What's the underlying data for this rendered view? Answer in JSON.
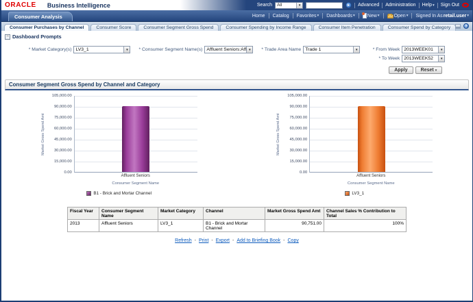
{
  "brand": {
    "oracle": "ORACLE",
    "product": "Business Intelligence"
  },
  "glyphs": {
    "caret_down": "▼",
    "caret_menu": "▾",
    "go_arrow": "▸",
    "help": "?",
    "collapse": "−",
    "link_sep": "-"
  },
  "topbar": {
    "search_label": "Search",
    "search_scope": "All",
    "search_value": "",
    "advanced": "Advanced",
    "administration": "Administration",
    "help": "Help",
    "sign_out": "Sign Out"
  },
  "navbar": {
    "home": "Home",
    "catalog": "Catalog",
    "favorites": "Favorites",
    "dashboards": "Dashboards",
    "new_label": "New",
    "open_label": "Open",
    "signed_in_as": "Signed In As",
    "user": "retail.user"
  },
  "dashboard_tab": "Consumer Analysis",
  "page_tabs": [
    {
      "label": "Consumer Purchases by Channel",
      "active": true
    },
    {
      "label": "Consumer Score",
      "active": false
    },
    {
      "label": "Consumer Segment Gross Spend",
      "active": false
    },
    {
      "label": "Consumer Spending by Income Range",
      "active": false
    },
    {
      "label": "Consumer Item Penetration",
      "active": false
    },
    {
      "label": "Consumer Spend by Category",
      "active": false
    }
  ],
  "prompts": {
    "section_title": "Dashboard Prompts",
    "fields": [
      {
        "label": "* Market Category(s)",
        "value": "LV3_1"
      },
      {
        "label": "* Consumer Segment Name(s)",
        "value": "Affluent Seniors:Aff"
      },
      {
        "label": "* Trade Area Name",
        "value": "Trade 1"
      },
      {
        "label": "* From Week",
        "value": "2013WEEK01"
      },
      {
        "label": "* To Week",
        "value": "2013WEEK52"
      }
    ],
    "apply": "Apply",
    "reset": "Reset"
  },
  "section": {
    "title": "Consumer Segment Gross Spend by Channel and Category"
  },
  "chart_data": [
    {
      "type": "bar",
      "title": "",
      "categories": [
        "Affluent Seniors"
      ],
      "series": [
        {
          "name": "B1 - Brick and Mortar Channel",
          "values": [
            90751
          ]
        }
      ],
      "xlabel": "Consumer Segment Name",
      "ylabel": "Market Gross Spend Amt",
      "ylim": [
        0,
        105000
      ],
      "ytick_step": 15000,
      "yticks": [
        "105,000.00",
        "90,000.00",
        "75,000.00",
        "60,000.00",
        "45,000.00",
        "30,000.00",
        "15,000.00",
        "0.00"
      ],
      "grid": true,
      "legend": "B1 - Brick and Mortar Channel",
      "legend_position": "bottom",
      "bar_gradient": [
        "#61205f",
        "#9a3c9a",
        "#c177c1"
      ]
    },
    {
      "type": "bar",
      "title": "",
      "categories": [
        "Affluent Seniors"
      ],
      "series": [
        {
          "name": "LV3_1",
          "values": [
            90751
          ]
        }
      ],
      "xlabel": "Consumer Segment Name",
      "ylabel": "Market Gross Spend Amt",
      "ylim": [
        0,
        105000
      ],
      "ytick_step": 15000,
      "yticks": [
        "105,000.00",
        "90,000.00",
        "75,000.00",
        "60,000.00",
        "45,000.00",
        "30,000.00",
        "15,000.00",
        "0.00"
      ],
      "grid": true,
      "legend": "LV3_1",
      "legend_position": "bottom",
      "bar_gradient": [
        "#c8500f",
        "#ef7d33",
        "#fdaa6d"
      ]
    }
  ],
  "table": {
    "headers": [
      "Fiscal Year",
      "Consumer Segment Name",
      "Market Category",
      "Channel",
      "Market Gross Spend Amt",
      "Channel Sales % Contribution to Total"
    ],
    "rows": [
      [
        "2013",
        "Affluent Seniors",
        "LV3_1",
        "B1 - Brick and Mortar Channel",
        "90,751.00",
        "100%"
      ]
    ]
  },
  "links": [
    "Refresh",
    "Print",
    "Export",
    "Add to Briefing Book",
    "Copy"
  ]
}
